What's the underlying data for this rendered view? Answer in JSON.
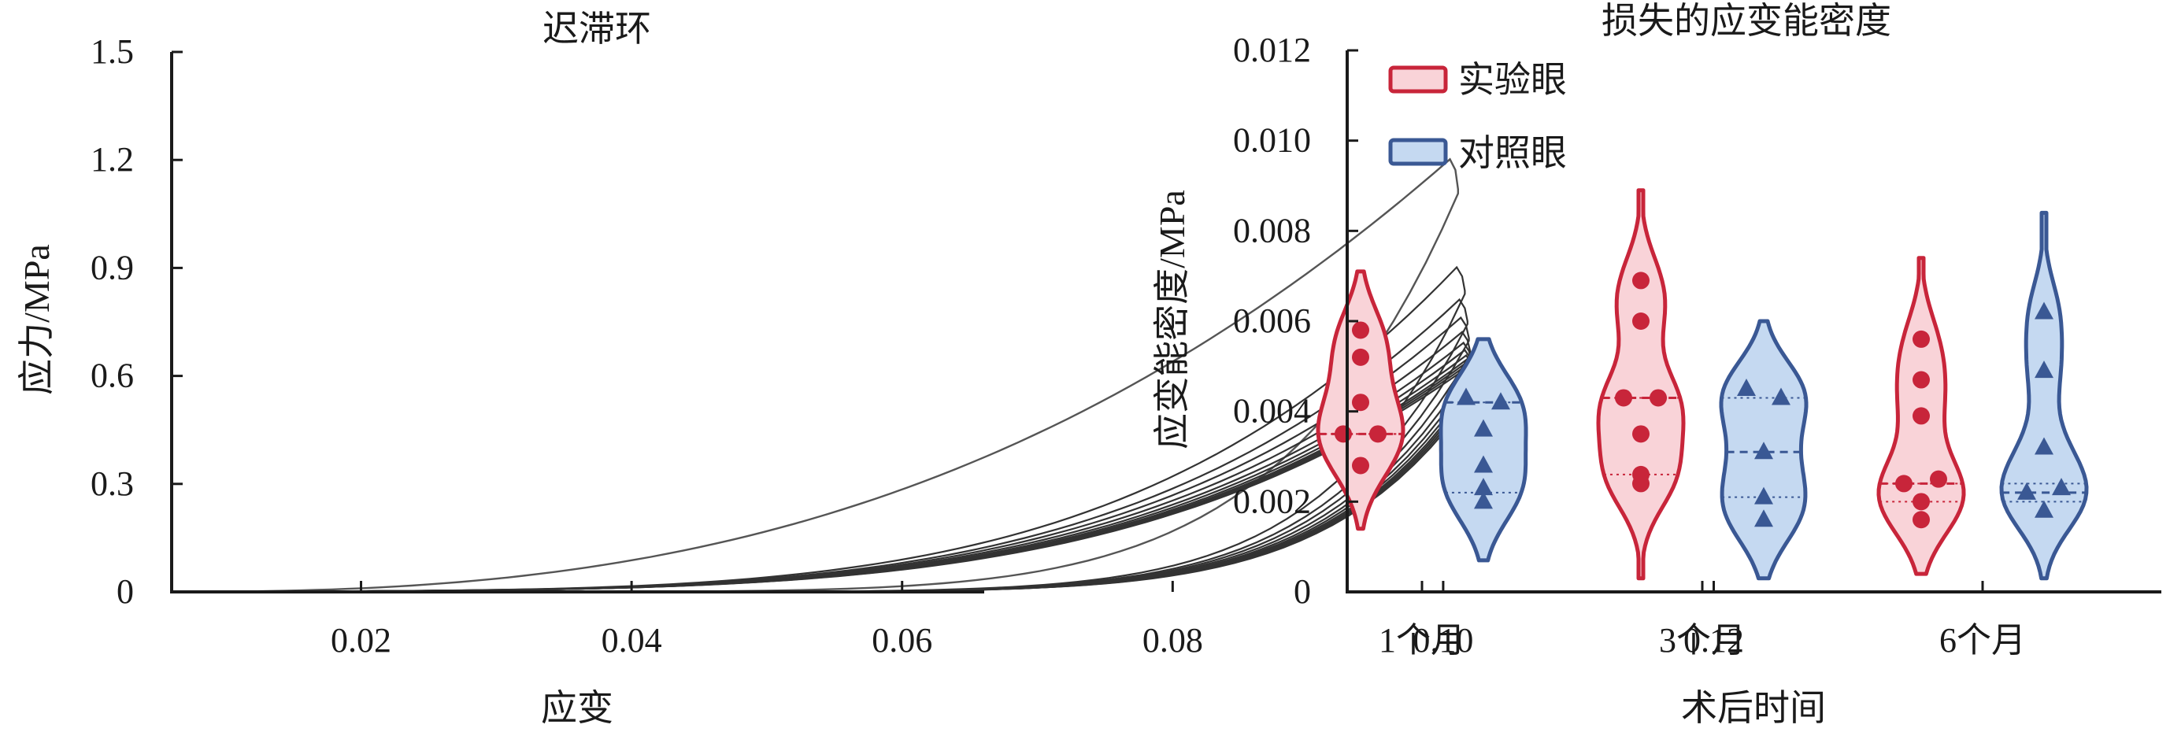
{
  "chart_data": [
    {
      "type": "line",
      "title": "迟滞环",
      "xlabel": "应变",
      "ylabel": "应力/MPa",
      "xlim": [
        0.006,
        0.12
      ],
      "ylim": [
        0,
        1.5
      ],
      "xticks": [
        "0.02",
        "0.04",
        "0.06",
        "0.08",
        "0.10",
        "0.12"
      ],
      "yticks": [
        "0",
        "0.3",
        "0.6",
        "0.9",
        "1.2",
        "1.5"
      ],
      "colors": {
        "first_cycle": "#555555",
        "later_cycles": "#333333"
      },
      "series": [
        {
          "peak_strain": 0.1005,
          "peak_stress": 1.19
        },
        {
          "peak_strain": 0.101,
          "peak_stress": 0.89
        },
        {
          "peak_strain": 0.1012,
          "peak_stress": 0.8
        },
        {
          "peak_strain": 0.1013,
          "peak_stress": 0.75
        },
        {
          "peak_strain": 0.1014,
          "peak_stress": 0.71
        },
        {
          "peak_strain": 0.1015,
          "peak_stress": 0.68
        },
        {
          "peak_strain": 0.1016,
          "peak_stress": 0.66
        },
        {
          "peak_strain": 0.1017,
          "peak_stress": 0.645
        },
        {
          "peak_strain": 0.1018,
          "peak_stress": 0.635
        },
        {
          "peak_strain": 0.1019,
          "peak_stress": 0.63
        },
        {
          "peak_strain": 0.102,
          "peak_stress": 0.625
        },
        {
          "peak_strain": 0.1021,
          "peak_stress": 0.62
        }
      ]
    },
    {
      "type": "violin",
      "title": "损失的应变能密度",
      "xlabel": "术后时间",
      "ylabel": "应变能密度/MPa",
      "ylim": [
        0,
        0.012
      ],
      "yticks": [
        "0",
        "0.002",
        "0.004",
        "0.006",
        "0.008",
        "0.010",
        "0.012"
      ],
      "categories": [
        "1个月",
        "3个月",
        "6个月"
      ],
      "series": [
        {
          "name": "实验眼",
          "marker": "circle",
          "fill": "#f9d3d8",
          "stroke": "#c8253a",
          "groups": [
            {
              "points": [
                0.0058,
                0.0052,
                0.0042,
                0.0035,
                0.0035,
                0.0028
              ],
              "min": 0.0014,
              "max": 0.0071,
              "median": 0.0035,
              "q1": 0.0035,
              "q3": 0.0035
            },
            {
              "points": [
                0.0069,
                0.006,
                0.0043,
                0.0043,
                0.0035,
                0.0026,
                0.0024
              ],
              "min": 0.0003,
              "max": 0.0089,
              "median": 0.0043,
              "q1": 0.0026,
              "q3": 0.0043
            },
            {
              "points": [
                0.0056,
                0.0047,
                0.0039,
                0.0025,
                0.0024,
                0.002,
                0.0016
              ],
              "min": 0.0004,
              "max": 0.0074,
              "median": 0.0024,
              "q1": 0.002,
              "q3": 0.0024
            }
          ]
        },
        {
          "name": "对照眼",
          "marker": "triangle",
          "fill": "#c5d9f1",
          "stroke": "#3a5894",
          "groups": [
            {
              "points": [
                0.0043,
                0.0042,
                0.0036,
                0.0028,
                0.0023,
                0.002
              ],
              "min": 0.0007,
              "max": 0.0056,
              "median": 0.0042,
              "q1": 0.0022,
              "q3": 0.0042
            },
            {
              "points": [
                0.0045,
                0.0043,
                0.0031,
                0.0021,
                0.0016
              ],
              "min": 0.0003,
              "max": 0.006,
              "median": 0.0031,
              "q1": 0.0021,
              "q3": 0.0043
            },
            {
              "points": [
                0.0062,
                0.0049,
                0.0032,
                0.0023,
                0.0022,
                0.0018
              ],
              "min": 0.0003,
              "max": 0.0084,
              "median": 0.0022,
              "q1": 0.002,
              "q3": 0.0024
            }
          ]
        }
      ],
      "legend": {
        "position": "top-left"
      }
    }
  ]
}
